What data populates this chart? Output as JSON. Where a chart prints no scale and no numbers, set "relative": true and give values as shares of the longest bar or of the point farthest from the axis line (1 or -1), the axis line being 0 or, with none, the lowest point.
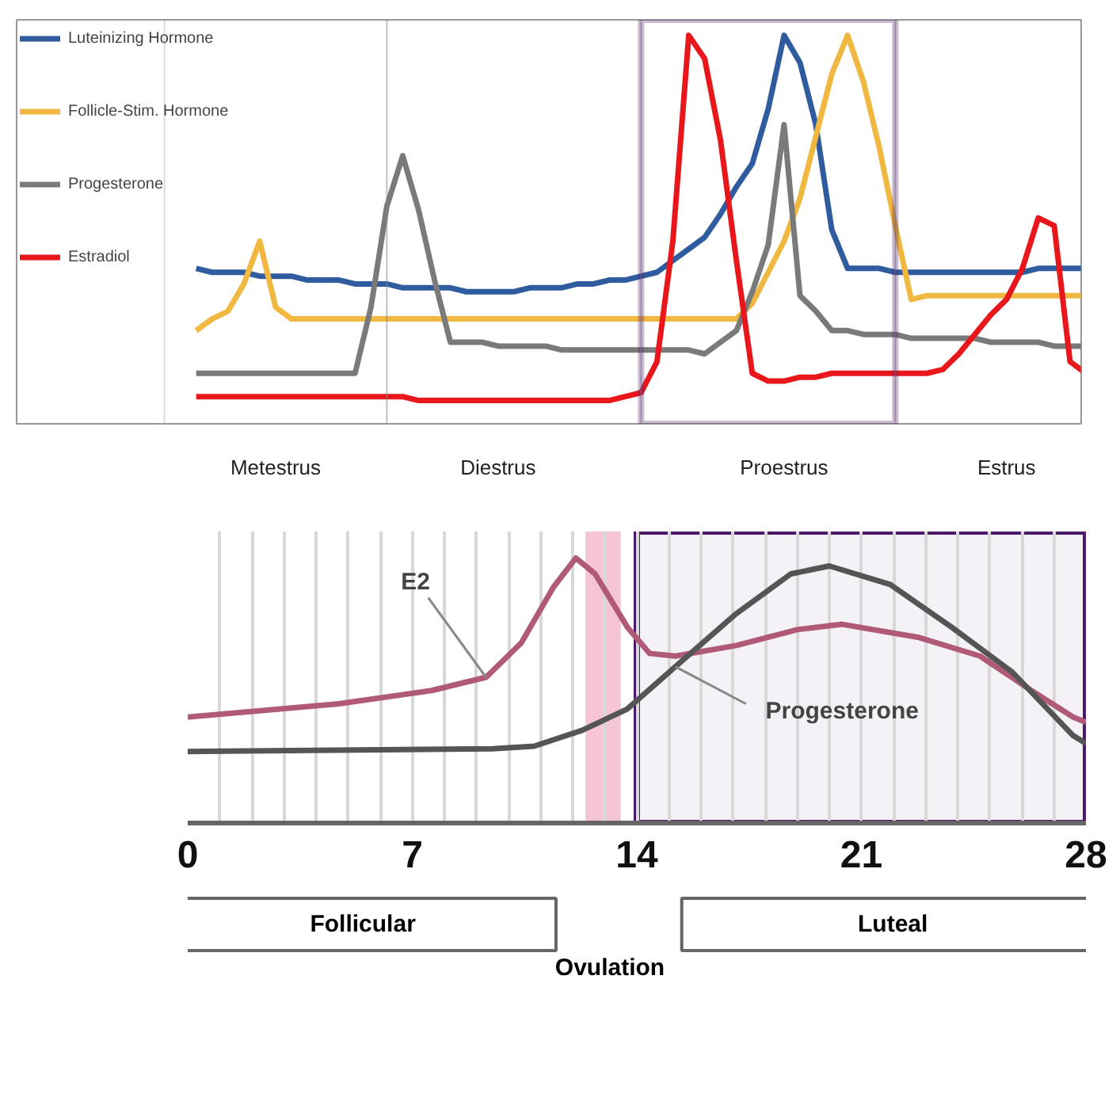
{
  "chart_data": [
    {
      "type": "line",
      "relative": true,
      "legend": "left",
      "categories": [
        null,
        null,
        null,
        null,
        null,
        "Metestrus",
        null,
        null,
        null,
        null,
        null,
        null,
        null,
        null,
        null,
        null,
        null,
        null,
        null,
        "Diestrus",
        null,
        null,
        null,
        null,
        null,
        null,
        null,
        null,
        null,
        null,
        null,
        null,
        null,
        null,
        null,
        null,
        null,
        "Proestrus",
        null,
        null,
        null,
        null,
        null,
        null,
        null,
        null,
        null,
        null,
        null,
        null,
        null,
        "Estrus",
        null,
        null,
        null,
        null,
        null
      ],
      "series": [
        {
          "name": "Luteinizing Hormone",
          "color": "#2f5c9e",
          "values": [
            0.4,
            0.39,
            0.39,
            0.39,
            0.38,
            0.38,
            0.38,
            0.37,
            0.37,
            0.37,
            0.36,
            0.36,
            0.36,
            0.35,
            0.35,
            0.35,
            0.35,
            0.34,
            0.34,
            0.34,
            0.34,
            0.35,
            0.35,
            0.35,
            0.36,
            0.36,
            0.37,
            0.37,
            0.38,
            0.39,
            0.42,
            0.45,
            0.48,
            0.54,
            0.61,
            0.67,
            0.81,
            1.0,
            0.93,
            0.77,
            0.5,
            0.4,
            0.4,
            0.4,
            0.39,
            0.39,
            0.39,
            0.39,
            0.39,
            0.39,
            0.39,
            0.39,
            0.39,
            0.4,
            0.4,
            0.4,
            0.4
          ]
        },
        {
          "name": "Follicle-Stim. Hormone",
          "color": "#f0b840",
          "values": [
            0.24,
            0.27,
            0.29,
            0.36,
            0.47,
            0.3,
            0.27,
            0.27,
            0.27,
            0.27,
            0.27,
            0.27,
            0.27,
            0.27,
            0.27,
            0.27,
            0.27,
            0.27,
            0.27,
            0.27,
            0.27,
            0.27,
            0.27,
            0.27,
            0.27,
            0.27,
            0.27,
            0.27,
            0.27,
            0.27,
            0.27,
            0.27,
            0.27,
            0.27,
            0.27,
            0.31,
            0.39,
            0.47,
            0.58,
            0.74,
            0.9,
            1.0,
            0.88,
            0.71,
            0.51,
            0.32,
            0.33,
            0.33,
            0.33,
            0.33,
            0.33,
            0.33,
            0.33,
            0.33,
            0.33,
            0.33,
            0.33
          ]
        },
        {
          "name": "Progesterone",
          "color": "#7a7a7a",
          "values": [
            0.13,
            0.13,
            0.13,
            0.13,
            0.13,
            0.13,
            0.13,
            0.13,
            0.13,
            0.13,
            0.13,
            0.3,
            0.56,
            0.69,
            0.55,
            0.37,
            0.21,
            0.21,
            0.21,
            0.2,
            0.2,
            0.2,
            0.2,
            0.19,
            0.19,
            0.19,
            0.19,
            0.19,
            0.19,
            0.19,
            0.19,
            0.19,
            0.18,
            0.21,
            0.24,
            0.34,
            0.46,
            0.77,
            0.33,
            0.29,
            0.24,
            0.24,
            0.23,
            0.23,
            0.23,
            0.22,
            0.22,
            0.22,
            0.22,
            0.22,
            0.21,
            0.21,
            0.21,
            0.21,
            0.2,
            0.2,
            0.2
          ]
        },
        {
          "name": "Estradiol",
          "color": "#e8171c",
          "values": [
            0.07,
            0.07,
            0.07,
            0.07,
            0.07,
            0.07,
            0.07,
            0.07,
            0.07,
            0.07,
            0.07,
            0.07,
            0.07,
            0.07,
            0.06,
            0.06,
            0.06,
            0.06,
            0.06,
            0.06,
            0.06,
            0.06,
            0.06,
            0.06,
            0.06,
            0.06,
            0.06,
            0.07,
            0.08,
            0.16,
            0.47,
            1.0,
            0.94,
            0.73,
            0.42,
            0.13,
            0.11,
            0.11,
            0.12,
            0.12,
            0.13,
            0.13,
            0.13,
            0.13,
            0.13,
            0.13,
            0.13,
            0.14,
            0.18,
            0.23,
            0.28,
            0.32,
            0.4,
            0.53,
            0.51,
            0.16,
            0.13
          ]
        }
      ]
    },
    {
      "type": "line",
      "relative": true,
      "xlim": [
        0,
        28
      ],
      "grid": "x",
      "xticks": [
        0,
        {
          "value": 1,
          "label": null
        },
        {
          "value": 2,
          "label": null
        },
        {
          "value": 3,
          "label": null
        },
        {
          "value": 4,
          "label": null
        },
        {
          "value": 5,
          "label": null
        },
        {
          "value": 6,
          "label": null
        },
        7,
        {
          "value": 8,
          "label": null
        },
        {
          "value": 9,
          "label": null
        },
        {
          "value": 10,
          "label": null
        },
        {
          "value": 11,
          "label": null
        },
        {
          "value": 12,
          "label": null
        },
        {
          "value": 13,
          "label": null
        },
        14,
        {
          "value": 15,
          "label": null
        },
        {
          "value": 16,
          "label": null
        },
        {
          "value": 17,
          "label": null
        },
        {
          "value": 18,
          "label": null
        },
        {
          "value": 19,
          "label": null
        },
        {
          "value": 20,
          "label": null
        },
        21,
        {
          "value": 22,
          "label": null
        },
        {
          "value": 23,
          "label": null
        },
        {
          "value": 24,
          "label": null
        },
        {
          "value": 25,
          "label": null
        },
        {
          "value": 26,
          "label": null
        },
        {
          "value": 27,
          "label": null
        },
        28
      ],
      "series": [
        {
          "color": "#b05a78",
          "x": [
            0,
            4.7,
            7.6,
            9.3,
            10.4,
            11.4,
            12.1,
            12.7,
            13.7,
            14.4,
            15.2,
            17.1,
            19.0,
            20.4,
            22.8,
            24.7,
            26.3,
            27.6,
            28
          ],
          "values": [
            0.4,
            0.45,
            0.5,
            0.55,
            0.68,
            0.89,
            1.0,
            0.94,
            0.74,
            0.64,
            0.63,
            0.67,
            0.73,
            0.75,
            0.7,
            0.63,
            0.5,
            0.4,
            0.38
          ]
        },
        {
          "color": "#555555",
          "x": [
            0,
            9.5,
            10.8,
            12.3,
            13.7,
            15.2,
            17.1,
            18.8,
            20.0,
            21.9,
            23.8,
            25.7,
            27.6,
            28
          ],
          "values": [
            0.27,
            0.28,
            0.29,
            0.35,
            0.43,
            0.59,
            0.79,
            0.94,
            0.97,
            0.9,
            0.74,
            0.57,
            0.33,
            0.3
          ]
        }
      ],
      "bands": [
        {
          "axis": "x",
          "from": 12.4,
          "to": 13.5,
          "color": "#f6c5d5"
        },
        {
          "axis": "x",
          "from": 14,
          "to": 28,
          "color": "#4b1a6b"
        }
      ],
      "annotations": [
        {
          "text": "E2",
          "x": 9.3,
          "y": 0.55
        },
        {
          "text": "Progesterone",
          "x": 15.2,
          "y": 0.59
        },
        "Follicular",
        "Luteal",
        "Ovulation"
      ]
    }
  ]
}
